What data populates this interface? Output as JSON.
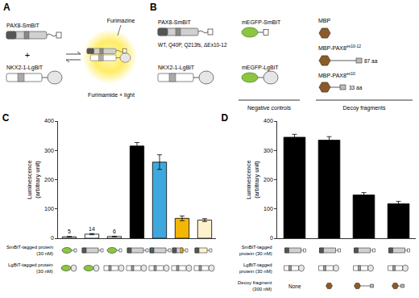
{
  "diagram": {
    "panel_A": {
      "label": "A",
      "bait": "PAX8-SmBiT",
      "plus": "+",
      "prey": "NKX2-1-LgBiT",
      "substrate": "Furimazine",
      "product": "Furimamide + light"
    },
    "panel_B": {
      "label": "B",
      "bait": "PAX8-SmBiT",
      "variants": "WT, Q40P, Q213fs, ΔEx10-12",
      "prey": "NKX2-1-LgBiT",
      "control_bait": "mEGFP-SmBiT",
      "control_prey": "mEGFP-LgBiT",
      "controls": "Negative controls",
      "decoy_mbp": "MBP",
      "decoy_long": {
        "text": "MBP-PAX8",
        "sup": "ex10-12"
      },
      "decoy_long_size": "87 aa",
      "decoy_short": {
        "text": "MBP-PAX8",
        "sup": "ex10"
      },
      "decoy_short_size": "33 aa",
      "decoys": "Decoy fragments"
    }
  },
  "chart_data": [
    {
      "title": "C",
      "type": "bar",
      "categories": [
        null,
        null,
        null,
        null,
        null,
        null,
        null
      ],
      "values": [
        5,
        14,
        6,
        315,
        260,
        68,
        62
      ],
      "errors": [
        1,
        2,
        1,
        12,
        25,
        8,
        5
      ],
      "data_labels": true,
      "value_labels": [
        "5",
        "14",
        "6",
        null,
        null,
        null,
        null
      ],
      "colors": [
        "#ffffff",
        "#ffffff",
        "#ffffff",
        "#000000",
        "#3ea8dc",
        "#f2b705",
        "#fdf2cc"
      ],
      "y_label": "Luminescence\n(arbitrary unit)",
      "ylim": [
        0,
        400
      ],
      "yticks": [
        0,
        100,
        200,
        300,
        400
      ],
      "grid": false,
      "tick_labels": "y",
      "rows": [
        {
          "label": "SmBiT-tagged protein\n(30 nM)",
          "cells": [
            {
              "marker": "gfp_sm"
            },
            {
              "marker": "pax8_wt"
            },
            {
              "marker": "gfp_sm"
            },
            {
              "marker": "pax8_wt"
            },
            {
              "marker": "pax8_q40p"
            },
            {
              "marker": "pax8_fs"
            },
            {
              "marker": "pax8_del"
            }
          ]
        },
        {
          "label": "LgBiT-tagged protein\n(30 nM)",
          "cells": [
            {
              "marker": "gfp_lg"
            },
            {
              "marker": "gfp_lg"
            },
            {
              "marker": "nkx"
            },
            {
              "marker": "nkx"
            },
            {
              "marker": "nkx"
            },
            {
              "marker": "nkx"
            },
            {
              "marker": "nkx"
            }
          ]
        }
      ]
    },
    {
      "title": "D",
      "type": "bar",
      "categories": [
        null,
        null,
        null,
        null
      ],
      "values": [
        345,
        335,
        148,
        118
      ],
      "errors": [
        10,
        12,
        8,
        8
      ],
      "data_labels": false,
      "colors": [
        "#000000",
        "#000000",
        "#000000",
        "#000000"
      ],
      "y_label": "Luminescence\n(arbitrary unit)",
      "ylim": [
        0,
        400
      ],
      "yticks": [
        0,
        100,
        200,
        300,
        400
      ],
      "grid": false,
      "tick_labels": "y",
      "rows": [
        {
          "label": "SmBiT-tagged\nprotein (30 nM)",
          "cells": [
            {
              "marker": "pax8_wt"
            },
            {
              "marker": "pax8_wt"
            },
            {
              "marker": "pax8_wt"
            },
            {
              "marker": "pax8_wt"
            }
          ]
        },
        {
          "label": "LgBiT-tagged\nprotein (30 nM)",
          "cells": [
            {
              "marker": "nkx"
            },
            {
              "marker": "nkx"
            },
            {
              "marker": "nkx"
            },
            {
              "marker": "nkx"
            }
          ]
        },
        {
          "label": "Decoy fragment\n(300 nM)",
          "cells": [
            {
              "text": "None"
            },
            {
              "marker": "mbp"
            },
            {
              "marker": "mbp_long"
            },
            {
              "marker": "mbp_short"
            }
          ]
        }
      ]
    }
  ]
}
